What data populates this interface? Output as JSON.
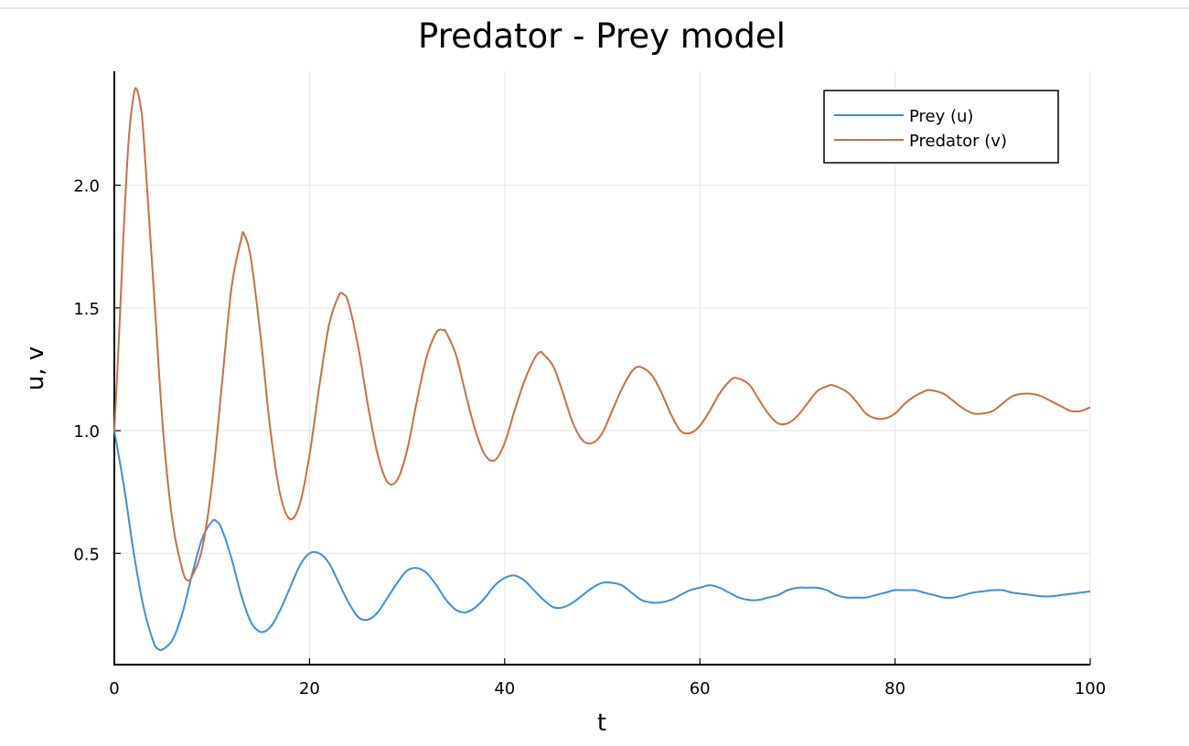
{
  "chart_data": {
    "type": "line",
    "title": "Predator - Prey model",
    "xlabel": "t",
    "ylabel": "u, v",
    "xlim": [
      0,
      100
    ],
    "ylim": [
      0.0466,
      2.4642
    ],
    "x_ticks": [
      0,
      20,
      40,
      60,
      80,
      100
    ],
    "x_tick_labels": [
      "0",
      "20",
      "40",
      "60",
      "80",
      "100"
    ],
    "y_ticks": [
      0.5,
      1.0,
      1.5,
      2.0
    ],
    "y_tick_labels": [
      "0.5",
      "1.0",
      "1.5",
      "2.0"
    ],
    "grid": true,
    "legend_position": "top-right",
    "series": [
      {
        "name": "Prey (u)",
        "color": "#3b8ee3",
        "points": [
          [
            0,
            1.0
          ],
          [
            1,
            0.77
          ],
          [
            2,
            0.5
          ],
          [
            3,
            0.28
          ],
          [
            4,
            0.14
          ],
          [
            4.5,
            0.11
          ],
          [
            5,
            0.11
          ],
          [
            6,
            0.15
          ],
          [
            7,
            0.26
          ],
          [
            8,
            0.42
          ],
          [
            9,
            0.56
          ],
          [
            10,
            0.63
          ],
          [
            10.5,
            0.63
          ],
          [
            11,
            0.6
          ],
          [
            12,
            0.48
          ],
          [
            13,
            0.33
          ],
          [
            14,
            0.22
          ],
          [
            15,
            0.18
          ],
          [
            16,
            0.2
          ],
          [
            17,
            0.27
          ],
          [
            18,
            0.36
          ],
          [
            19,
            0.45
          ],
          [
            20,
            0.5
          ],
          [
            21,
            0.5
          ],
          [
            22,
            0.46
          ],
          [
            23,
            0.38
          ],
          [
            24,
            0.3
          ],
          [
            25,
            0.24
          ],
          [
            26,
            0.23
          ],
          [
            27,
            0.26
          ],
          [
            28,
            0.32
          ],
          [
            29,
            0.38
          ],
          [
            30,
            0.43
          ],
          [
            31,
            0.44
          ],
          [
            32,
            0.42
          ],
          [
            33,
            0.37
          ],
          [
            34,
            0.31
          ],
          [
            35,
            0.27
          ],
          [
            36,
            0.26
          ],
          [
            37,
            0.28
          ],
          [
            38,
            0.32
          ],
          [
            39,
            0.37
          ],
          [
            40,
            0.4
          ],
          [
            41,
            0.41
          ],
          [
            42,
            0.39
          ],
          [
            43,
            0.35
          ],
          [
            44,
            0.31
          ],
          [
            45,
            0.28
          ],
          [
            46,
            0.28
          ],
          [
            47,
            0.3
          ],
          [
            48,
            0.33
          ],
          [
            49,
            0.36
          ],
          [
            50,
            0.38
          ],
          [
            51,
            0.38
          ],
          [
            52,
            0.37
          ],
          [
            53,
            0.34
          ],
          [
            54,
            0.31
          ],
          [
            55,
            0.3
          ],
          [
            56,
            0.3
          ],
          [
            57,
            0.31
          ],
          [
            58,
            0.33
          ],
          [
            59,
            0.35
          ],
          [
            60,
            0.36
          ],
          [
            61,
            0.37
          ],
          [
            62,
            0.36
          ],
          [
            63,
            0.34
          ],
          [
            64,
            0.32
          ],
          [
            65,
            0.31
          ],
          [
            66,
            0.31
          ],
          [
            67,
            0.32
          ],
          [
            68,
            0.33
          ],
          [
            69,
            0.35
          ],
          [
            70,
            0.36
          ],
          [
            71,
            0.36
          ],
          [
            72,
            0.36
          ],
          [
            73,
            0.35
          ],
          [
            74,
            0.33
          ],
          [
            75,
            0.32
          ],
          [
            76,
            0.32
          ],
          [
            77,
            0.32
          ],
          [
            78,
            0.33
          ],
          [
            79,
            0.34
          ],
          [
            80,
            0.35
          ],
          [
            81,
            0.35
          ],
          [
            82,
            0.35
          ],
          [
            83,
            0.34
          ],
          [
            84,
            0.33
          ],
          [
            85,
            0.32
          ],
          [
            86,
            0.32
          ],
          [
            87,
            0.33
          ],
          [
            88,
            0.34
          ],
          [
            89,
            0.345
          ],
          [
            90,
            0.35
          ],
          [
            91,
            0.35
          ],
          [
            92,
            0.34
          ],
          [
            93,
            0.335
          ],
          [
            94,
            0.33
          ],
          [
            95,
            0.325
          ],
          [
            96,
            0.325
          ],
          [
            97,
            0.33
          ],
          [
            98,
            0.335
          ],
          [
            99,
            0.34
          ],
          [
            100,
            0.345
          ]
        ]
      },
      {
        "name": "Predator (v)",
        "color": "#cd6d45",
        "points": [
          [
            0,
            1.0
          ],
          [
            0.5,
            1.4
          ],
          [
            1,
            1.85
          ],
          [
            1.5,
            2.2
          ],
          [
            2,
            2.37
          ],
          [
            2.3,
            2.39
          ],
          [
            2.7,
            2.32
          ],
          [
            3,
            2.2
          ],
          [
            4,
            1.6
          ],
          [
            5,
            1.0
          ],
          [
            6,
            0.62
          ],
          [
            7,
            0.43
          ],
          [
            7.5,
            0.39
          ],
          [
            8,
            0.41
          ],
          [
            9,
            0.52
          ],
          [
            10,
            0.78
          ],
          [
            11,
            1.18
          ],
          [
            12,
            1.58
          ],
          [
            13,
            1.78
          ],
          [
            13.3,
            1.8
          ],
          [
            14,
            1.7
          ],
          [
            15,
            1.38
          ],
          [
            16,
            1.0
          ],
          [
            17,
            0.74
          ],
          [
            18,
            0.64
          ],
          [
            19,
            0.7
          ],
          [
            20,
            0.9
          ],
          [
            21,
            1.18
          ],
          [
            22,
            1.43
          ],
          [
            23,
            1.55
          ],
          [
            23.5,
            1.555
          ],
          [
            24,
            1.52
          ],
          [
            25,
            1.34
          ],
          [
            26,
            1.1
          ],
          [
            27,
            0.9
          ],
          [
            28,
            0.79
          ],
          [
            29,
            0.8
          ],
          [
            30,
            0.92
          ],
          [
            31,
            1.12
          ],
          [
            32,
            1.3
          ],
          [
            33,
            1.4
          ],
          [
            33.7,
            1.41
          ],
          [
            34,
            1.4
          ],
          [
            35,
            1.31
          ],
          [
            36,
            1.15
          ],
          [
            37,
            1.0
          ],
          [
            38,
            0.9
          ],
          [
            39,
            0.88
          ],
          [
            40,
            0.95
          ],
          [
            41,
            1.08
          ],
          [
            42,
            1.2
          ],
          [
            43,
            1.29
          ],
          [
            43.6,
            1.32
          ],
          [
            44,
            1.31
          ],
          [
            45,
            1.26
          ],
          [
            46,
            1.15
          ],
          [
            47,
            1.03
          ],
          [
            48,
            0.96
          ],
          [
            49,
            0.95
          ],
          [
            50,
            0.99
          ],
          [
            51,
            1.08
          ],
          [
            52,
            1.17
          ],
          [
            53,
            1.24
          ],
          [
            53.8,
            1.26
          ],
          [
            55,
            1.23
          ],
          [
            56,
            1.16
          ],
          [
            57,
            1.07
          ],
          [
            58,
            1.0
          ],
          [
            59,
            0.99
          ],
          [
            60,
            1.02
          ],
          [
            61,
            1.08
          ],
          [
            62,
            1.15
          ],
          [
            63,
            1.2
          ],
          [
            63.7,
            1.215
          ],
          [
            65,
            1.19
          ],
          [
            66,
            1.13
          ],
          [
            67,
            1.07
          ],
          [
            68,
            1.03
          ],
          [
            69,
            1.03
          ],
          [
            70,
            1.06
          ],
          [
            71,
            1.11
          ],
          [
            72,
            1.16
          ],
          [
            73,
            1.18
          ],
          [
            73.6,
            1.185
          ],
          [
            75,
            1.16
          ],
          [
            76,
            1.12
          ],
          [
            77,
            1.07
          ],
          [
            78,
            1.05
          ],
          [
            79,
            1.05
          ],
          [
            80,
            1.07
          ],
          [
            81,
            1.11
          ],
          [
            82,
            1.14
          ],
          [
            83,
            1.16
          ],
          [
            83.6,
            1.165
          ],
          [
            85,
            1.15
          ],
          [
            86,
            1.12
          ],
          [
            87,
            1.09
          ],
          [
            88,
            1.07
          ],
          [
            89,
            1.07
          ],
          [
            90,
            1.08
          ],
          [
            91,
            1.11
          ],
          [
            92,
            1.14
          ],
          [
            93,
            1.15
          ],
          [
            94,
            1.15
          ],
          [
            95,
            1.14
          ],
          [
            96,
            1.12
          ],
          [
            97,
            1.1
          ],
          [
            98,
            1.08
          ],
          [
            99,
            1.08
          ],
          [
            100,
            1.095
          ]
        ]
      }
    ]
  }
}
